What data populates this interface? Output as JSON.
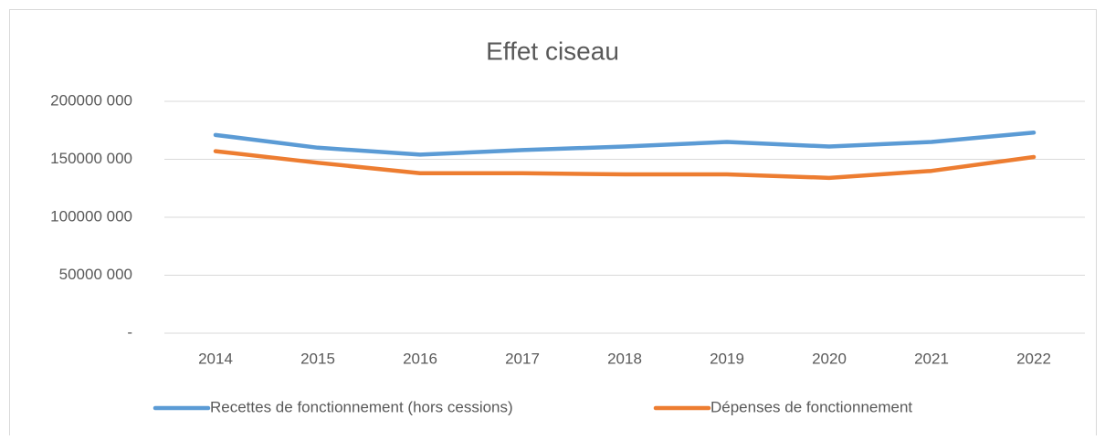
{
  "chart_data": {
    "type": "line",
    "title": "Effet ciseau",
    "categories": [
      "2014",
      "2015",
      "2016",
      "2017",
      "2018",
      "2019",
      "2020",
      "2021",
      "2022"
    ],
    "series": [
      {
        "name": "Recettes de fonctionnement (hors cessions)",
        "color": "#5b9bd5",
        "values": [
          171000000,
          160000000,
          154000000,
          158000000,
          161000000,
          165000000,
          161000000,
          165000000,
          173000000
        ]
      },
      {
        "name": "Dépenses de fonctionnement",
        "color": "#ed7d31",
        "values": [
          157000000,
          147000000,
          138000000,
          138000000,
          137000000,
          137000000,
          134000000,
          140000000,
          152000000
        ]
      }
    ],
    "ylim": [
      0,
      200000000
    ],
    "yticks": [
      {
        "value": 0,
        "label": "-"
      },
      {
        "value": 50000000,
        "label": "50000 000"
      },
      {
        "value": 100000000,
        "label": "100000 000"
      },
      {
        "value": 150000000,
        "label": "150000 000"
      },
      {
        "value": 200000000,
        "label": "200000 000"
      }
    ],
    "grid": true,
    "legend": "bottom"
  }
}
